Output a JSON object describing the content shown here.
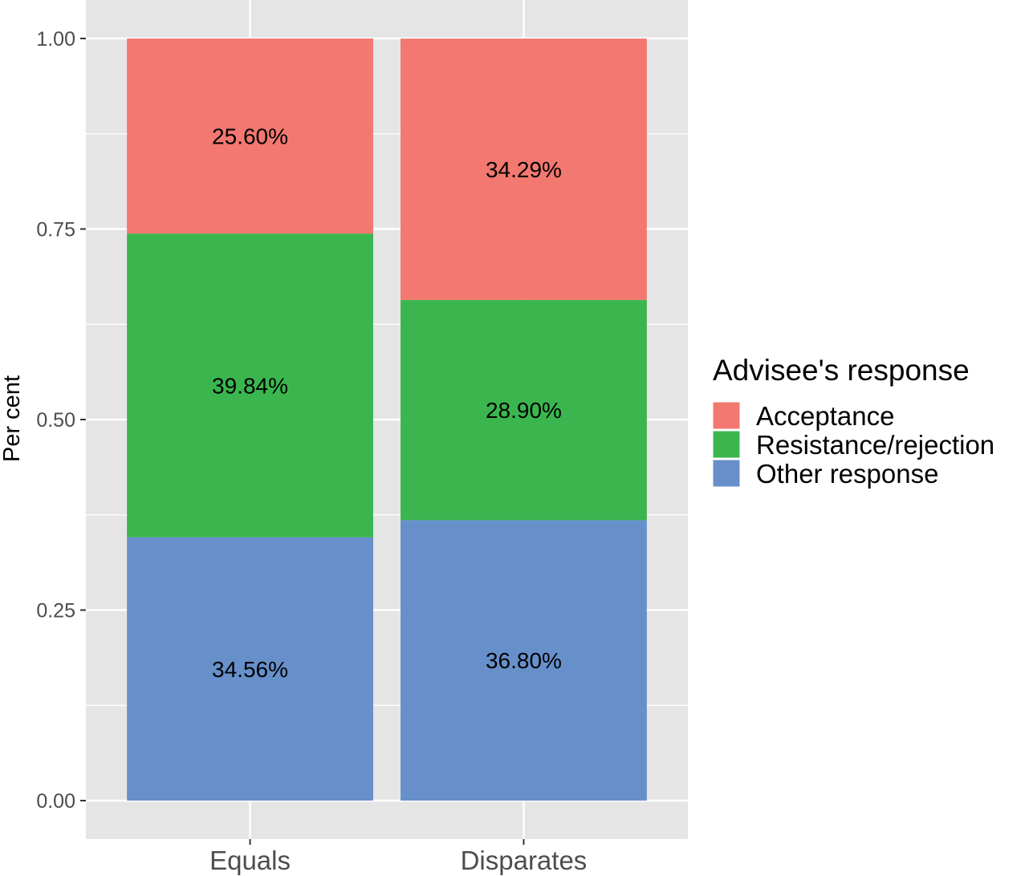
{
  "chart_data": {
    "type": "bar",
    "stacked": true,
    "title": "",
    "xlabel": "",
    "ylabel": "Per cent",
    "ylim": [
      0,
      1
    ],
    "yticks": [
      "0.00",
      "0.25",
      "0.50",
      "0.75",
      "1.00"
    ],
    "grid": true,
    "categories": [
      "Equals",
      "Disparates"
    ],
    "series": [
      {
        "name": "Other response",
        "color": "#6790cb",
        "values": [
          0.3456,
          0.368
        ],
        "labels": [
          "34.56%",
          "36.80%"
        ]
      },
      {
        "name": "Resistance/rejection",
        "color": "#3bb64e",
        "values": [
          0.3984,
          0.289
        ],
        "labels": [
          "39.84%",
          "28.90%"
        ]
      },
      {
        "name": "Acceptance",
        "color": "#f27870",
        "values": [
          0.256,
          0.3429
        ],
        "labels": [
          "25.60%",
          "34.29%"
        ]
      }
    ],
    "legend": {
      "title": "Advisee's response",
      "position": "right",
      "order": [
        "Acceptance",
        "Resistance/rejection",
        "Other response"
      ]
    }
  }
}
